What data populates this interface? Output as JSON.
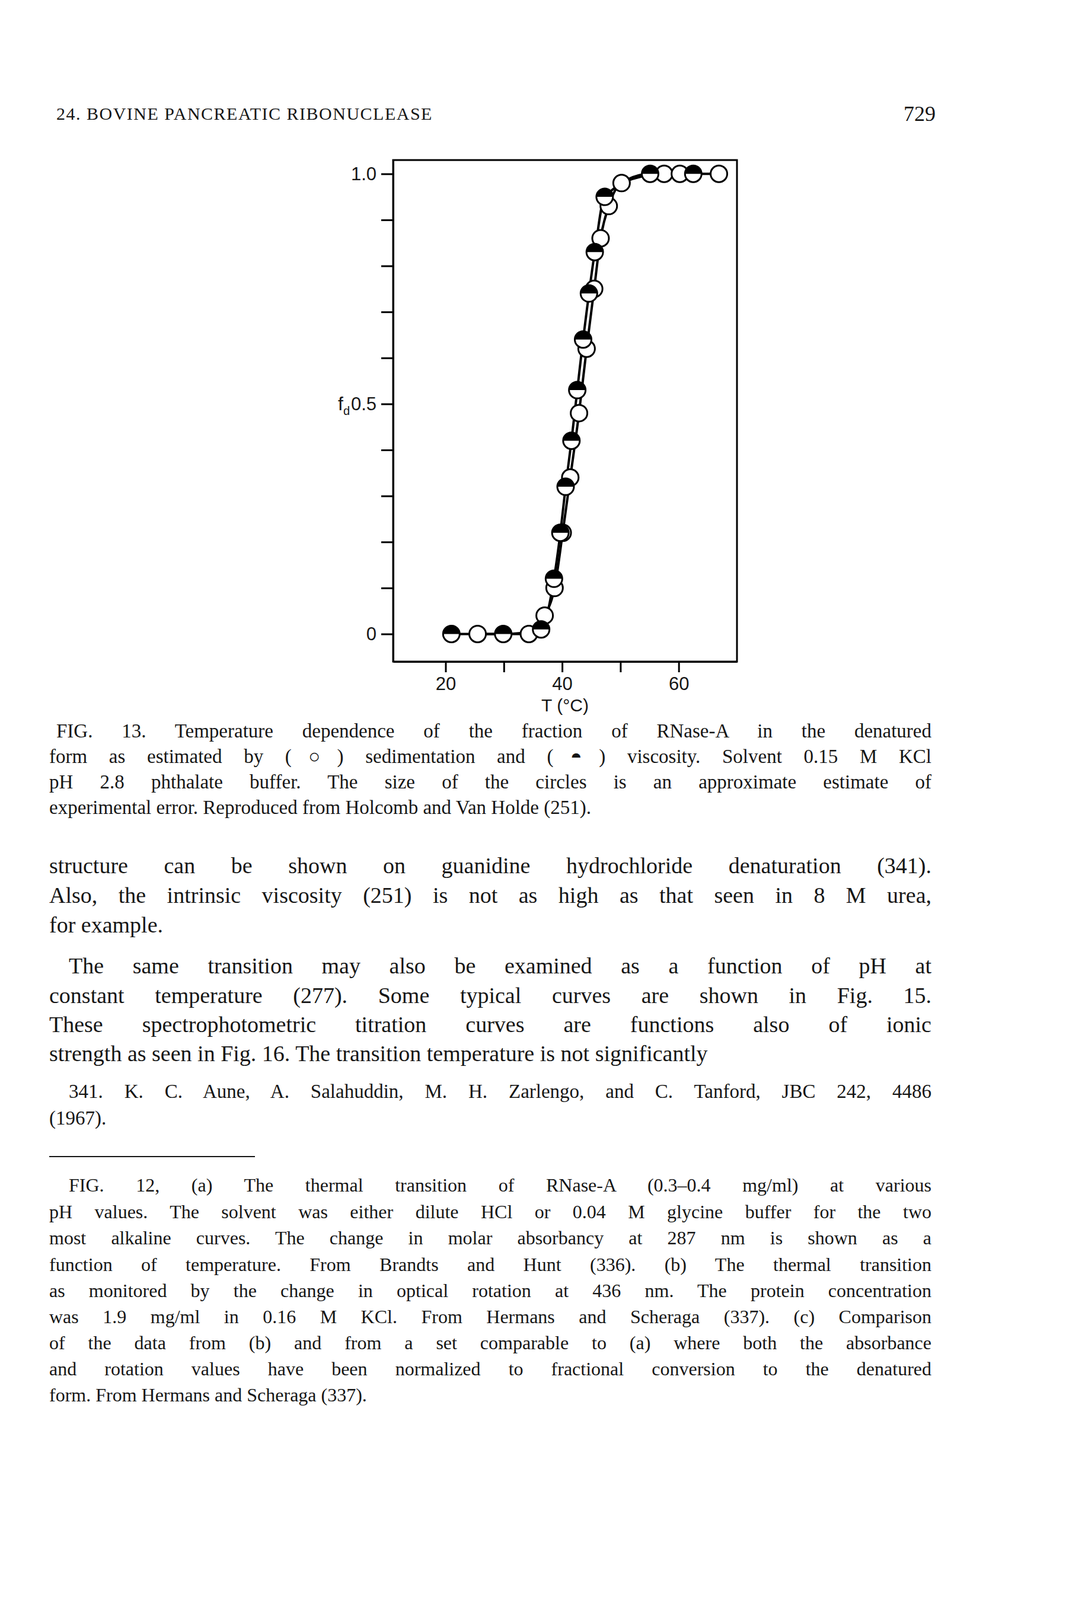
{
  "header": {
    "running_head": "24. BOVINE PANCREATIC RIBONUCLEASE",
    "page_number": "729"
  },
  "chart_data": {
    "type": "line",
    "xlabel": "T (°C)",
    "ylabel": "f",
    "ylabel_subscript": "d",
    "xlim": [
      11,
      70
    ],
    "ylim": [
      -0.06,
      1.03
    ],
    "xticks": [
      20,
      {
        "value": 30,
        "label": null
      },
      40,
      {
        "value": 50,
        "label": null
      },
      60
    ],
    "yticks": [
      0,
      {
        "value": 0.1,
        "label": null
      },
      {
        "value": 0.2,
        "label": null
      },
      {
        "value": 0.3,
        "label": null
      },
      {
        "value": 0.4,
        "label": null
      },
      0.5,
      {
        "value": 0.6,
        "label": null
      },
      {
        "value": 0.7,
        "label": null
      },
      {
        "value": 0.8,
        "label": null
      },
      {
        "value": 0.9,
        "label": null
      },
      {
        "value": 1,
        "label": "1.0"
      }
    ],
    "grid": false,
    "series": [
      {
        "marker": "open",
        "color": "#000000",
        "line_style": "solid",
        "x": [
          25.5,
          34.3,
          37.0,
          38.7,
          40.1,
          41.4,
          42.9,
          44.2,
          45.5,
          46.6,
          48.0,
          50.2,
          57.5,
          60.2,
          66.9
        ],
        "values": [
          0,
          0,
          0.04,
          0.1,
          0.22,
          0.34,
          0.48,
          0.62,
          0.75,
          0.86,
          0.93,
          0.98,
          1.0,
          1.0,
          1.0
        ]
      },
      {
        "marker": "half-filled",
        "color": "#000000",
        "line_style": "solid",
        "x": [
          21.0,
          29.9,
          36.4,
          38.6,
          39.7,
          40.6,
          41.6,
          42.6,
          43.6,
          44.6,
          45.6,
          47.3,
          55.1,
          62.5
        ],
        "values": [
          0,
          0,
          0.01,
          0.12,
          0.22,
          0.32,
          0.42,
          0.53,
          0.64,
          0.74,
          0.83,
          0.95,
          1.0,
          1.0
        ]
      }
    ]
  },
  "figure_caption": {
    "lines": [
      "FIG. 13. Temperature dependence of the fraction of RNase-A in the denatured",
      "form as estimated by (○) sedimentation and (◓) viscosity. Solvent 0.15 M KCl",
      "pH 2.8 phthalate buffer. The size of the circles is an approximate estimate of",
      "experimental error. Reproduced from Holcomb and Van Holde (251)."
    ]
  },
  "body": {
    "paragraphs": [
      [
        "structure can be shown on guanidine hydrochloride denaturation (341).",
        "Also, the intrinsic viscosity (251) is not as high as that seen in 8 M urea,",
        "for example."
      ],
      [
        "The same transition may also be examined as a function of pH at",
        "constant temperature (277). Some typical curves are shown in Fig. 15.",
        "These spectrophotometric titration curves are functions also of ionic",
        "strength as seen in Fig. 16. The transition temperature is not significantly"
      ]
    ]
  },
  "footnote": {
    "lines": [
      "341. K. C. Aune, A. Salahuddin, M. H. Zarlengo, and C. Tanford, JBC 242, 4486",
      "(1967)."
    ]
  },
  "figure_12_caption": {
    "lines": [
      "FIG. 12, (a) The thermal transition of RNase-A (0.3–0.4 mg/ml) at various",
      "pH values. The solvent was either dilute HCl or 0.04 M glycine buffer for the two",
      "most alkaline curves. The change in molar absorbancy at 287 nm is shown as a",
      "function of temperature. From Brandts and Hunt (336). (b) The thermal transition",
      "as monitored by the change in optical rotation at 436 nm. The protein concentration",
      "was 1.9 mg/ml in 0.16 M KCl. From Hermans and Scheraga (337). (c) Comparison",
      "of the data from (b) and from a set comparable to (a) where both the absorbance",
      "and rotation values have been normalized to fractional conversion to the denatured",
      "form. From Hermans and Scheraga (337)."
    ]
  }
}
